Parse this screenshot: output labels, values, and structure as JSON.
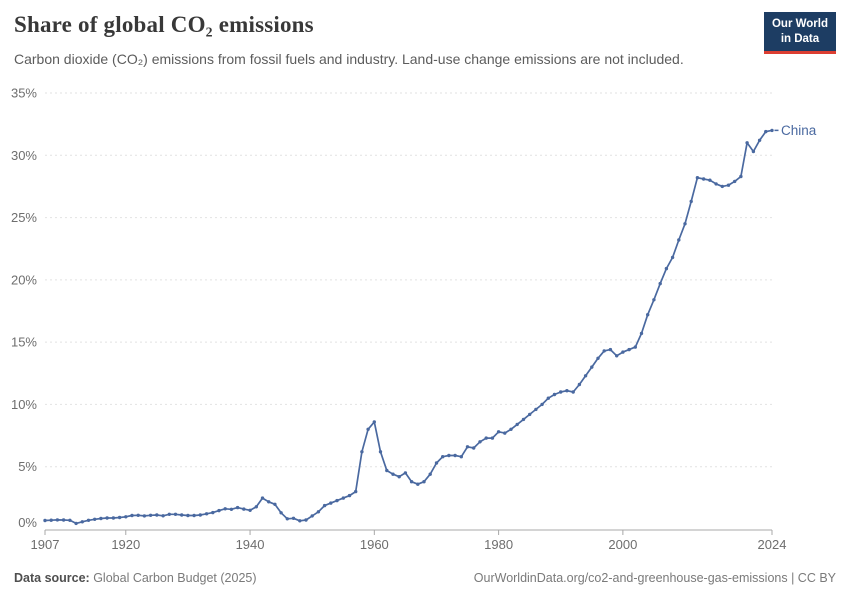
{
  "header": {
    "title": "Share of global CO₂ emissions",
    "subtitle": "Carbon dioxide (CO₂) emissions from fossil fuels and industry. Land-use change emissions are not included.",
    "logo": {
      "line1": "Our World",
      "line2": "in Data"
    }
  },
  "footer": {
    "source_label": "Data source:",
    "source_value": " Global Carbon Budget (2025)",
    "link": "OurWorldinData.org/co2-and-greenhouse-gas-emissions",
    "license": " | CC BY"
  },
  "colors": {
    "line": "#4a69a0",
    "grid": "#e2e2e2",
    "axis": "#a8a8a8",
    "logo_bg": "#1d3d63",
    "logo_red": "#dc3e32"
  },
  "chart_data": {
    "type": "line",
    "title": "Share of global CO₂ emissions",
    "xlabel": "",
    "ylabel": "",
    "xlim": [
      1907,
      2024
    ],
    "ylim": [
      0,
      35
    ],
    "xticks": [
      1907,
      1920,
      1940,
      1960,
      1980,
      2000,
      2024
    ],
    "yticks": [
      0,
      5,
      10,
      15,
      20,
      25,
      30,
      35
    ],
    "ytick_suffix": "%",
    "grid": "horizontal-dashed",
    "legend_position": "end-of-line-label",
    "series": [
      {
        "name": "China",
        "x": [
          1907,
          1908,
          1909,
          1910,
          1911,
          1912,
          1913,
          1914,
          1915,
          1916,
          1917,
          1918,
          1919,
          1920,
          1921,
          1922,
          1923,
          1924,
          1925,
          1926,
          1927,
          1928,
          1929,
          1930,
          1931,
          1932,
          1933,
          1934,
          1935,
          1936,
          1937,
          1938,
          1939,
          1940,
          1941,
          1942,
          1943,
          1944,
          1945,
          1946,
          1947,
          1948,
          1949,
          1950,
          1951,
          1952,
          1953,
          1954,
          1955,
          1956,
          1957,
          1958,
          1959,
          1960,
          1961,
          1962,
          1963,
          1964,
          1965,
          1966,
          1967,
          1968,
          1969,
          1970,
          1971,
          1972,
          1973,
          1974,
          1975,
          1976,
          1977,
          1978,
          1979,
          1980,
          1981,
          1982,
          1983,
          1984,
          1985,
          1986,
          1987,
          1988,
          1989,
          1990,
          1991,
          1992,
          1993,
          1994,
          1995,
          1996,
          1997,
          1998,
          1999,
          2000,
          2001,
          2002,
          2003,
          2004,
          2005,
          2006,
          2007,
          2008,
          2009,
          2010,
          2011,
          2012,
          2013,
          2014,
          2015,
          2016,
          2017,
          2018,
          2019,
          2020,
          2021,
          2022,
          2023,
          2024
        ],
        "values": [
          0.68,
          0.71,
          0.73,
          0.72,
          0.7,
          0.45,
          0.58,
          0.7,
          0.78,
          0.84,
          0.88,
          0.88,
          0.92,
          0.98,
          1.08,
          1.1,
          1.05,
          1.1,
          1.12,
          1.06,
          1.18,
          1.18,
          1.12,
          1.08,
          1.08,
          1.12,
          1.22,
          1.32,
          1.48,
          1.62,
          1.58,
          1.72,
          1.6,
          1.5,
          1.78,
          2.48,
          2.18,
          1.98,
          1.3,
          0.82,
          0.86,
          0.66,
          0.72,
          1.05,
          1.38,
          1.88,
          2.08,
          2.28,
          2.48,
          2.68,
          3.0,
          6.2,
          8.0,
          8.6,
          6.2,
          4.7,
          4.4,
          4.2,
          4.5,
          3.8,
          3.6,
          3.8,
          4.4,
          5.3,
          5.8,
          5.9,
          5.9,
          5.8,
          6.6,
          6.5,
          7.0,
          7.3,
          7.3,
          7.8,
          7.7,
          8.0,
          8.4,
          8.8,
          9.2,
          9.6,
          10.0,
          10.5,
          10.8,
          11.0,
          11.1,
          11.0,
          11.6,
          12.3,
          13.0,
          13.7,
          14.3,
          14.4,
          13.9,
          14.2,
          14.4,
          14.6,
          15.7,
          17.2,
          18.4,
          19.7,
          20.9,
          21.8,
          23.2,
          24.5,
          26.3,
          28.2,
          28.1,
          28.0,
          27.7,
          27.5,
          27.6,
          27.9,
          28.3,
          31.0,
          30.3,
          31.2,
          31.9,
          32.0
        ]
      }
    ]
  }
}
